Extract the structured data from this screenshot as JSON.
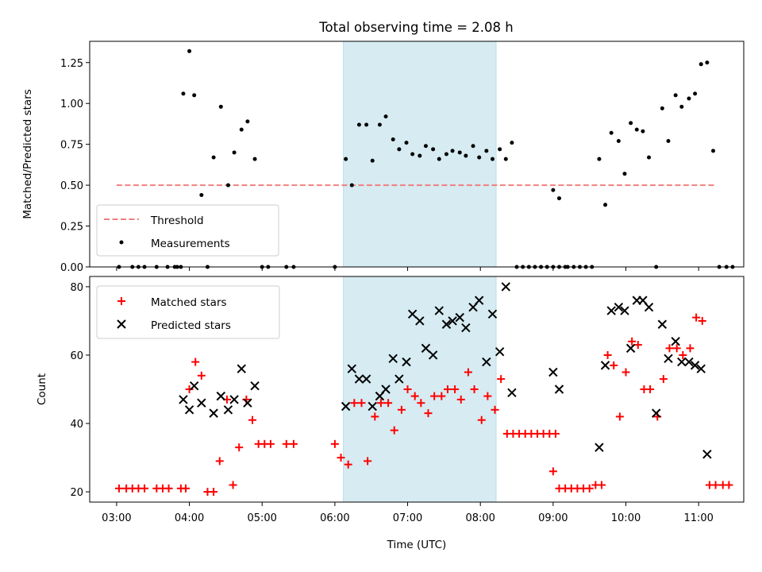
{
  "chart_data": [
    {
      "type": "scatter",
      "title": "Total observing time = 2.08 h",
      "xlabel": "",
      "ylabel": "Matched/Predicted stars",
      "ylim": [
        0,
        1.38
      ],
      "yticks": [
        "0.00",
        "0.25",
        "0.50",
        "0.75",
        "1.00",
        "1.25"
      ],
      "legend": {
        "placement": "lower-left",
        "entries": [
          "Threshold",
          "Measurements"
        ]
      },
      "shaded_region_x": [
        "06:07",
        "08:13"
      ],
      "threshold": {
        "name": "Threshold",
        "value": 0.5,
        "x": [
          "03:00",
          "11:13"
        ],
        "color": "#f08080",
        "style": "dashed"
      },
      "series": [
        {
          "name": "Measurements",
          "color": "#000000",
          "marker": "dot",
          "points": [
            [
              "03:02",
              0
            ],
            [
              "03:13",
              0
            ],
            [
              "03:18",
              0
            ],
            [
              "03:23",
              0
            ],
            [
              "03:33",
              0
            ],
            [
              "03:42",
              0
            ],
            [
              "03:48",
              0
            ],
            [
              "03:50",
              0
            ],
            [
              "03:53",
              0
            ],
            [
              "03:55",
              1.06
            ],
            [
              "04:00",
              1.32
            ],
            [
              "04:04",
              1.05
            ],
            [
              "04:10",
              0.44
            ],
            [
              "04:15",
              0
            ],
            [
              "04:20",
              0.67
            ],
            [
              "04:26",
              0.98
            ],
            [
              "04:32",
              0.5
            ],
            [
              "04:37",
              0.7
            ],
            [
              "04:43",
              0.84
            ],
            [
              "04:48",
              0.89
            ],
            [
              "04:54",
              0.66
            ],
            [
              "05:00",
              0
            ],
            [
              "05:05",
              0
            ],
            [
              "05:20",
              0
            ],
            [
              "05:26",
              0
            ],
            [
              "06:00",
              0
            ],
            [
              "06:09",
              0.66
            ],
            [
              "06:14",
              0.5
            ],
            [
              "06:20",
              0.87
            ],
            [
              "06:26",
              0.87
            ],
            [
              "06:31",
              0.65
            ],
            [
              "06:37",
              0.87
            ],
            [
              "06:42",
              0.92
            ],
            [
              "06:48",
              0.78
            ],
            [
              "06:53",
              0.72
            ],
            [
              "06:59",
              0.76
            ],
            [
              "07:04",
              0.69
            ],
            [
              "07:10",
              0.68
            ],
            [
              "07:15",
              0.74
            ],
            [
              "07:21",
              0.72
            ],
            [
              "07:26",
              0.66
            ],
            [
              "07:32",
              0.69
            ],
            [
              "07:37",
              0.71
            ],
            [
              "07:43",
              0.7
            ],
            [
              "07:48",
              0.68
            ],
            [
              "07:54",
              0.74
            ],
            [
              "07:59",
              0.67
            ],
            [
              "08:05",
              0.71
            ],
            [
              "08:10",
              0.66
            ],
            [
              "08:16",
              0.72
            ],
            [
              "08:21",
              0.66
            ],
            [
              "08:26",
              0.76
            ],
            [
              "08:30",
              0
            ],
            [
              "08:35",
              0
            ],
            [
              "08:40",
              0
            ],
            [
              "08:45",
              0
            ],
            [
              "08:50",
              0
            ],
            [
              "08:55",
              0
            ],
            [
              "09:00",
              0
            ],
            [
              "09:05",
              0
            ],
            [
              "09:10",
              0
            ],
            [
              "09:00",
              0.47
            ],
            [
              "09:05",
              0.42
            ],
            [
              "09:12",
              0
            ],
            [
              "09:17",
              0
            ],
            [
              "09:22",
              0
            ],
            [
              "09:27",
              0
            ],
            [
              "09:32",
              0
            ],
            [
              "09:38",
              0.66
            ],
            [
              "09:43",
              0.38
            ],
            [
              "09:48",
              0.82
            ],
            [
              "09:54",
              0.77
            ],
            [
              "09:59",
              0.57
            ],
            [
              "10:04",
              0.88
            ],
            [
              "10:09",
              0.84
            ],
            [
              "10:14",
              0.83
            ],
            [
              "10:19",
              0.67
            ],
            [
              "10:25",
              0
            ],
            [
              "10:30",
              0.97
            ],
            [
              "10:35",
              0.77
            ],
            [
              "10:41",
              1.05
            ],
            [
              "10:46",
              0.98
            ],
            [
              "10:52",
              1.03
            ],
            [
              "10:57",
              1.06
            ],
            [
              "11:02",
              1.24
            ],
            [
              "11:07",
              1.25
            ],
            [
              "11:12",
              0.71
            ],
            [
              "11:17",
              0
            ],
            [
              "11:23",
              0
            ],
            [
              "11:28",
              0
            ]
          ]
        }
      ]
    },
    {
      "type": "scatter",
      "title": "",
      "xlabel": "Time (UTC)",
      "ylabel": "Count",
      "ylim": [
        17,
        83
      ],
      "yticks": [
        "20",
        "40",
        "60",
        "80"
      ],
      "xticks": [
        "03:00",
        "04:00",
        "05:00",
        "06:00",
        "07:00",
        "08:00",
        "09:00",
        "10:00",
        "11:00"
      ],
      "legend": {
        "placement": "upper-left",
        "entries": [
          "Matched stars",
          "Predicted stars"
        ]
      },
      "shaded_region_x": [
        "06:07",
        "08:13"
      ],
      "series": [
        {
          "name": "Matched stars",
          "color": "#ff0000",
          "marker": "plus",
          "points": [
            [
              "03:02",
              21
            ],
            [
              "03:08",
              21
            ],
            [
              "03:13",
              21
            ],
            [
              "03:18",
              21
            ],
            [
              "03:23",
              21
            ],
            [
              "03:33",
              21
            ],
            [
              "03:38",
              21
            ],
            [
              "03:43",
              21
            ],
            [
              "03:53",
              21
            ],
            [
              "03:57",
              21
            ],
            [
              "04:00",
              50
            ],
            [
              "04:05",
              58
            ],
            [
              "04:10",
              54
            ],
            [
              "04:15",
              20
            ],
            [
              "04:20",
              20
            ],
            [
              "04:25",
              29
            ],
            [
              "04:31",
              47
            ],
            [
              "04:36",
              22
            ],
            [
              "04:41",
              33
            ],
            [
              "04:47",
              47
            ],
            [
              "04:52",
              41
            ],
            [
              "04:57",
              34
            ],
            [
              "05:02",
              34
            ],
            [
              "05:07",
              34
            ],
            [
              "05:20",
              34
            ],
            [
              "05:26",
              34
            ],
            [
              "06:00",
              34
            ],
            [
              "06:05",
              30
            ],
            [
              "06:11",
              28
            ],
            [
              "06:16",
              46
            ],
            [
              "06:22",
              46
            ],
            [
              "06:27",
              29
            ],
            [
              "06:33",
              42
            ],
            [
              "06:38",
              46
            ],
            [
              "06:44",
              46
            ],
            [
              "06:49",
              38
            ],
            [
              "06:55",
              44
            ],
            [
              "07:00",
              50
            ],
            [
              "07:06",
              48
            ],
            [
              "07:11",
              46
            ],
            [
              "07:17",
              43
            ],
            [
              "07:22",
              48
            ],
            [
              "07:28",
              48
            ],
            [
              "07:33",
              50
            ],
            [
              "07:39",
              50
            ],
            [
              "07:44",
              47
            ],
            [
              "07:50",
              55
            ],
            [
              "07:55",
              50
            ],
            [
              "08:01",
              41
            ],
            [
              "08:06",
              48
            ],
            [
              "08:12",
              44
            ],
            [
              "08:17",
              53
            ],
            [
              "08:22",
              37
            ],
            [
              "08:27",
              37
            ],
            [
              "08:32",
              37
            ],
            [
              "08:37",
              37
            ],
            [
              "08:42",
              37
            ],
            [
              "08:47",
              37
            ],
            [
              "08:52",
              37
            ],
            [
              "08:57",
              37
            ],
            [
              "09:02",
              37
            ],
            [
              "09:00",
              26
            ],
            [
              "09:05",
              21
            ],
            [
              "09:10",
              21
            ],
            [
              "09:15",
              21
            ],
            [
              "09:20",
              21
            ],
            [
              "09:25",
              21
            ],
            [
              "09:30",
              21
            ],
            [
              "09:35",
              22
            ],
            [
              "09:40",
              22
            ],
            [
              "09:45",
              60
            ],
            [
              "09:50",
              57
            ],
            [
              "09:55",
              42
            ],
            [
              "10:00",
              55
            ],
            [
              "10:05",
              64
            ],
            [
              "10:10",
              63
            ],
            [
              "10:15",
              50
            ],
            [
              "10:20",
              50
            ],
            [
              "10:26",
              42
            ],
            [
              "10:31",
              53
            ],
            [
              "10:36",
              62
            ],
            [
              "10:42",
              62
            ],
            [
              "10:47",
              60
            ],
            [
              "10:53",
              62
            ],
            [
              "10:58",
              71
            ],
            [
              "11:03",
              70
            ],
            [
              "11:09",
              22
            ],
            [
              "11:14",
              22
            ],
            [
              "11:20",
              22
            ],
            [
              "11:25",
              22
            ]
          ]
        },
        {
          "name": "Predicted stars",
          "color": "#000000",
          "marker": "x",
          "points": [
            [
              "03:55",
              47
            ],
            [
              "04:00",
              44
            ],
            [
              "04:04",
              51
            ],
            [
              "04:10",
              46
            ],
            [
              "04:20",
              43
            ],
            [
              "04:26",
              48
            ],
            [
              "04:32",
              44
            ],
            [
              "04:37",
              47
            ],
            [
              "04:43",
              56
            ],
            [
              "04:48",
              46
            ],
            [
              "04:54",
              51
            ],
            [
              "06:09",
              45
            ],
            [
              "06:14",
              56
            ],
            [
              "06:20",
              53
            ],
            [
              "06:26",
              53
            ],
            [
              "06:31",
              45
            ],
            [
              "06:37",
              48
            ],
            [
              "06:42",
              50
            ],
            [
              "06:48",
              59
            ],
            [
              "06:53",
              53
            ],
            [
              "06:59",
              58
            ],
            [
              "07:04",
              72
            ],
            [
              "07:10",
              70
            ],
            [
              "07:15",
              62
            ],
            [
              "07:21",
              60
            ],
            [
              "07:26",
              73
            ],
            [
              "07:32",
              69
            ],
            [
              "07:37",
              70
            ],
            [
              "07:43",
              71
            ],
            [
              "07:48",
              68
            ],
            [
              "07:54",
              74
            ],
            [
              "07:59",
              76
            ],
            [
              "08:05",
              58
            ],
            [
              "08:10",
              72
            ],
            [
              "08:16",
              61
            ],
            [
              "08:21",
              80
            ],
            [
              "08:26",
              49
            ],
            [
              "09:00",
              55
            ],
            [
              "09:05",
              50
            ],
            [
              "09:38",
              33
            ],
            [
              "09:43",
              57
            ],
            [
              "09:48",
              73
            ],
            [
              "09:54",
              74
            ],
            [
              "09:59",
              73
            ],
            [
              "10:04",
              62
            ],
            [
              "10:09",
              76
            ],
            [
              "10:14",
              76
            ],
            [
              "10:19",
              74
            ],
            [
              "10:25",
              43
            ],
            [
              "10:30",
              69
            ],
            [
              "10:35",
              59
            ],
            [
              "10:41",
              64
            ],
            [
              "10:46",
              58
            ],
            [
              "10:52",
              58
            ],
            [
              "10:57",
              57
            ],
            [
              "11:02",
              56
            ],
            [
              "11:07",
              31
            ]
          ]
        }
      ]
    }
  ]
}
